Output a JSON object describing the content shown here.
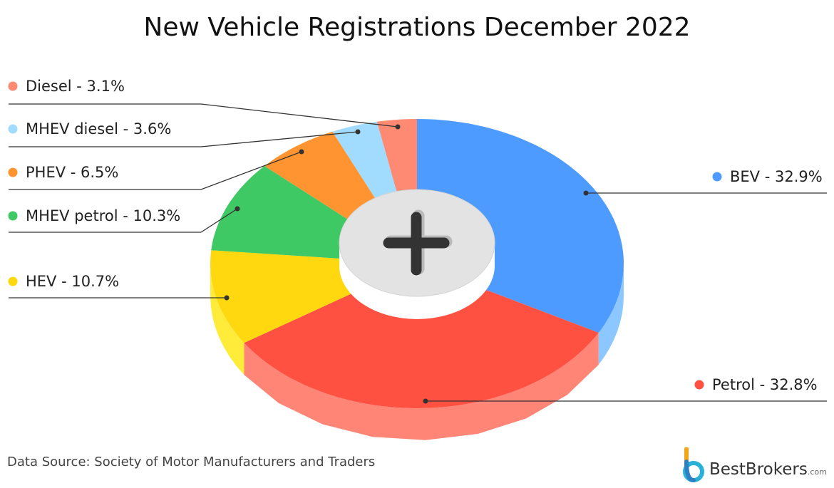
{
  "page_title": "New Vehicle Registrations December 2022",
  "source": "Data Source: Society of Motor Manufacturers and Traders",
  "brand": {
    "name": "BestBrokers",
    "domain": ".com"
  },
  "center_icon": "plus-icon",
  "chart_data": {
    "type": "pie",
    "title": "New Vehicle Registrations December 2022",
    "slices": [
      {
        "label": "BEV - 32.9%",
        "name": "BEV",
        "value": 32.9,
        "color": "#4e9bff",
        "side": "#8cc8ff",
        "side_label": "right"
      },
      {
        "label": "Petrol - 32.8%",
        "name": "Petrol",
        "value": 32.8,
        "color": "#ff5142",
        "side": "#ff8577",
        "side_label": "right"
      },
      {
        "label": "HEV - 10.7%",
        "name": "HEV",
        "value": 10.7,
        "color": "#ffd80f",
        "side": "#ffec3a",
        "side_label": "left"
      },
      {
        "label": "MHEV petrol - 10.3%",
        "name": "MHEV petrol",
        "value": 10.3,
        "color": "#3ec964",
        "side": "#3ec964",
        "side_label": "left"
      },
      {
        "label": "PHEV - 6.5%",
        "name": "PHEV",
        "value": 6.5,
        "color": "#ff9430",
        "side": "#ff9430",
        "side_label": "left"
      },
      {
        "label": "MHEV diesel - 3.6%",
        "name": "MHEV diesel",
        "value": 3.6,
        "color": "#a1dcff",
        "side": "#a1dcff",
        "side_label": "left"
      },
      {
        "label": "Diesel - 3.1%",
        "name": "Diesel",
        "value": 3.1,
        "color": "#ff8a73",
        "side": "#ff8a73",
        "side_label": "left"
      }
    ]
  }
}
